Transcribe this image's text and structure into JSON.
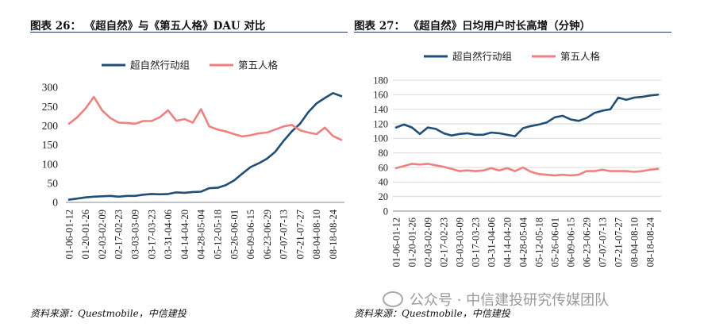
{
  "chart_data": [
    {
      "type": "line",
      "title": "图表 26：  《超自然》与《第五人格》DAU 对比",
      "source": "资料来源：Questmobile，中信建投",
      "categories": [
        "01-06",
        "01-12",
        "01-20",
        "01-26",
        "02-03",
        "02-09",
        "02-17",
        "02-23",
        "03-03",
        "03-09",
        "03-17",
        "03-23",
        "03-31",
        "04-06",
        "04-14",
        "04-20",
        "04-28",
        "05-04",
        "05-12",
        "05-18",
        "05-26",
        "06-01",
        "06-09",
        "06-15",
        "06-23",
        "06-29",
        "07-07",
        "07-13",
        "07-21",
        "07-27",
        "08-04",
        "08-10",
        "08-18",
        "08-24"
      ],
      "tick_labels": [
        "01-06-01-12",
        "01-20-01-26",
        "02-03-02-09",
        "02-17-02-23",
        "03-03-03-09",
        "03-17-03-23",
        "03-31-04-06",
        "04-14-04-20",
        "04-28-05-04",
        "05-12-05-18",
        "05-26-06-01",
        "06-09-06-15",
        "06-23-06-29",
        "07-07-07-13",
        "07-21-07-27",
        "08-04-08-10",
        "08-18-08-24"
      ],
      "ylim": [
        0,
        300
      ],
      "yticks": [
        0,
        50,
        100,
        150,
        200,
        250,
        300
      ],
      "legend_position": "top",
      "grid": false,
      "series": [
        {
          "name": "超自然行动组",
          "color": "#1f4e79",
          "values": [
            7,
            10,
            13,
            15,
            16,
            17,
            15,
            17,
            17,
            20,
            22,
            21,
            22,
            26,
            25,
            27,
            28,
            37,
            38,
            45,
            57,
            75,
            92,
            102,
            114,
            132,
            160,
            185,
            205,
            235,
            258,
            272,
            285,
            277
          ]
        },
        {
          "name": "第五人格",
          "color": "#f08080",
          "values": [
            205,
            222,
            245,
            275,
            240,
            220,
            208,
            207,
            205,
            212,
            212,
            222,
            240,
            213,
            217,
            208,
            243,
            198,
            190,
            185,
            178,
            172,
            175,
            180,
            182,
            190,
            198,
            202,
            188,
            182,
            178,
            195,
            173,
            163
          ]
        }
      ]
    },
    {
      "type": "line",
      "title": "图表 27：  《超自然》日均用户时长高增（分钟）",
      "source": "资料来源：Questmobile，中信建投",
      "categories": [
        "01-06",
        "01-12",
        "01-20",
        "01-26",
        "02-03",
        "02-09",
        "02-17",
        "02-23",
        "03-03",
        "03-09",
        "03-17",
        "03-23",
        "03-31",
        "04-06",
        "04-14",
        "04-20",
        "04-28",
        "05-04",
        "05-12",
        "05-18",
        "05-26",
        "06-01",
        "06-09",
        "06-15",
        "06-23",
        "06-29",
        "07-07",
        "07-13",
        "07-21",
        "07-27",
        "08-04",
        "08-10",
        "08-18",
        "08-24"
      ],
      "tick_labels": [
        "01-06-01-12",
        "01-20-01-26",
        "02-03-02-09",
        "02-17-02-23",
        "03-03-03-09",
        "03-17-03-23",
        "03-31-04-06",
        "04-14-04-20",
        "04-28-05-04",
        "05-12-05-18",
        "05-26-06-01",
        "06-09-06-15",
        "06-23-06-29",
        "07-07-07-13",
        "07-21-07-27",
        "08-04-08-10",
        "08-18-08-24"
      ],
      "ylim": [
        0,
        180
      ],
      "yticks": [
        0,
        20,
        40,
        60,
        80,
        100,
        120,
        140,
        160,
        180
      ],
      "legend_position": "top",
      "grid": true,
      "series": [
        {
          "name": "超自然行动组",
          "color": "#1f4e79",
          "values": [
            115,
            119,
            115,
            106,
            115,
            113,
            107,
            104,
            106,
            107,
            105,
            105,
            108,
            107,
            105,
            103,
            114,
            117,
            119,
            122,
            129,
            131,
            126,
            124,
            128,
            135,
            138,
            140,
            156,
            153,
            156,
            157,
            159,
            160
          ]
        },
        {
          "name": "第五人格",
          "color": "#f08080",
          "values": [
            59,
            62,
            65,
            64,
            65,
            63,
            61,
            58,
            55,
            56,
            55,
            56,
            59,
            56,
            59,
            55,
            60,
            54,
            51,
            50,
            49,
            50,
            49,
            50,
            55,
            55,
            57,
            55,
            55,
            55,
            54,
            55,
            57,
            58
          ]
        }
      ]
    }
  ],
  "watermark": "公众号 · 中信建投研究传媒团队"
}
